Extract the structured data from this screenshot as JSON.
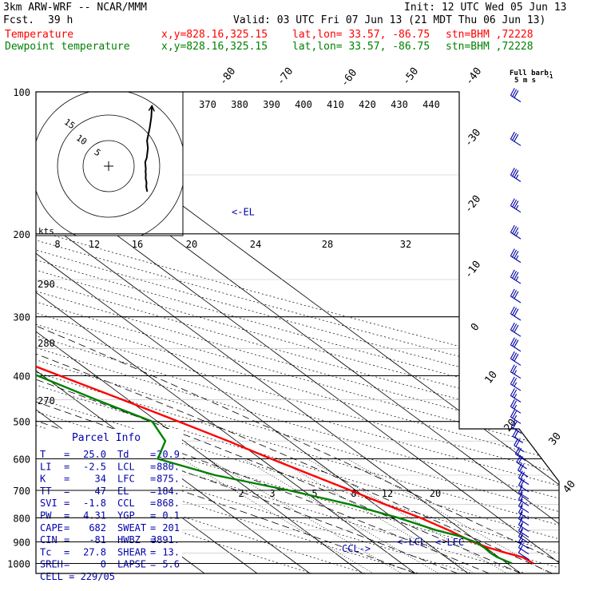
{
  "header": {
    "model": "3km ARW-WRF -- NCAR/MMM",
    "init": "Init: 12 UTC Wed 05 Jun 13",
    "fcst_label": "Fcst.",
    "fcst_value": "39 h",
    "valid": "Valid: 03 UTC Fri 07 Jun 13 (21 MDT Thu 06 Jun 13)",
    "temp_label": "Temperature",
    "dew_label": "Dewpoint temperature",
    "loc_xy": "x,y=828.16,325.15",
    "loc_latlon": "lat,lon= 33.57, -86.75",
    "loc_stn": "stn=BHM ,72228",
    "barb_note_1": "Full barb:",
    "barb_note_2": "5 m s",
    "barb_note_sup": "-1"
  },
  "colors": {
    "temperature": "#ff0000",
    "dewpoint": "#008000",
    "hodograph": "#000000",
    "isobar": "#000000",
    "parcel_info": "#0000aa",
    "wind": "#0000aa"
  },
  "chart_data": {
    "type": "line",
    "title": "",
    "xlabel": "",
    "ylabel": "",
    "pressure_levels": [
      100,
      200,
      300,
      400,
      500,
      600,
      700,
      800,
      900,
      1000
    ],
    "isotherm_labels": [
      -80,
      -70,
      -60,
      -50,
      -40,
      -30,
      -20,
      -10,
      0,
      10,
      20,
      30,
      40
    ],
    "theta_labels": [
      370,
      380,
      390,
      400,
      410,
      420,
      430,
      440
    ],
    "theta_left_labels": [
      290,
      280,
      270
    ],
    "mixing_ratio_labels": [
      2,
      3,
      5,
      8,
      12,
      20
    ],
    "hodograph": {
      "units": "kts",
      "ring_labels": [
        5,
        10,
        15
      ],
      "scale_labels": [
        8,
        12,
        16,
        20,
        24,
        28,
        32
      ],
      "path": [
        [
          17.2,
          -5.0
        ],
        [
          16.6,
          -4.0
        ],
        [
          16.8,
          -3.2
        ],
        [
          16.3,
          -2.4
        ],
        [
          16.4,
          -1.6
        ],
        [
          16.2,
          -1.0
        ],
        [
          16.4,
          -0.6
        ],
        [
          16.0,
          0.8
        ],
        [
          16.9,
          1.6
        ],
        [
          17.6,
          3.5
        ],
        [
          17.1,
          5.0
        ],
        [
          18.7,
          7.5
        ],
        [
          19.6,
          9.5
        ],
        [
          20.0,
          11.8
        ]
      ]
    },
    "series": [
      {
        "name": "Temperature",
        "points": [
          [
            1000,
            25.0
          ],
          [
            970,
            24.5
          ],
          [
            950,
            22.5
          ],
          [
            925,
            20.4
          ],
          [
            900,
            19.0
          ],
          [
            875,
            18.2
          ],
          [
            850,
            17.4
          ],
          [
            800,
            15.2
          ],
          [
            750,
            12.0
          ],
          [
            700,
            9.0
          ],
          [
            650,
            5.6
          ],
          [
            600,
            2.0
          ],
          [
            550,
            -1.6
          ],
          [
            500,
            -6.0
          ],
          [
            450,
            -11.0
          ],
          [
            400,
            -16.8
          ],
          [
            350,
            -23.2
          ],
          [
            300,
            -31.2
          ],
          [
            250,
            -41.0
          ],
          [
            200,
            -53.0
          ],
          [
            180,
            -58.0
          ],
          [
            170,
            -60.0
          ],
          [
            150,
            -61.0
          ],
          [
            130,
            -64.5
          ],
          [
            110,
            -68.0
          ],
          [
            100,
            -70.0
          ]
        ]
      },
      {
        "name": "Dewpoint temperature",
        "points": [
          [
            1000,
            20.9
          ],
          [
            970,
            19.7
          ],
          [
            950,
            19.5
          ],
          [
            925,
            19.7
          ],
          [
            900,
            19.4
          ],
          [
            875,
            17.9
          ],
          [
            850,
            15.0
          ],
          [
            800,
            11.0
          ],
          [
            750,
            5.3
          ],
          [
            700,
            -2.7
          ],
          [
            650,
            -12.8
          ],
          [
            600,
            -19.5
          ],
          [
            550,
            -13.5
          ],
          [
            500,
            -11.0
          ],
          [
            450,
            -16.0
          ],
          [
            400,
            -21.0
          ],
          [
            350,
            -30.5
          ],
          [
            300,
            -42.5
          ],
          [
            250,
            -49.0
          ],
          [
            200,
            -57.0
          ],
          [
            180,
            -68.0
          ],
          [
            160,
            -80.0
          ],
          [
            140,
            -82.0
          ],
          [
            120,
            -83.0
          ],
          [
            100,
            -84.0
          ]
        ]
      }
    ],
    "annotations": {
      "el": "<-EL",
      "ccl": "CCL->",
      "lcl": "<-LCL",
      "lfc": "<-LFC",
      "el_pressure": 184,
      "ccl_pressure": 868,
      "lcl_pressure": 880,
      "lfc_pressure": 875
    },
    "wind_profile": [
      [
        1000,
        210,
        11
      ],
      [
        925,
        220,
        13
      ],
      [
        850,
        225,
        15
      ],
      [
        700,
        235,
        18
      ],
      [
        600,
        240,
        20
      ],
      [
        500,
        240,
        23
      ],
      [
        400,
        240,
        27
      ],
      [
        300,
        240,
        31
      ],
      [
        250,
        240,
        33
      ],
      [
        200,
        240,
        35
      ],
      [
        150,
        240,
        33
      ],
      [
        100,
        240,
        30
      ]
    ],
    "parcel_info": {
      "title": "Parcel Info",
      "rows": [
        [
          "T",
          "25.0",
          "Td",
          "20.9"
        ],
        [
          "LI",
          "-2.5",
          "LCL",
          "880."
        ],
        [
          "K",
          "34",
          "LFC",
          "875."
        ],
        [
          "TT",
          "47",
          "EL",
          "184."
        ],
        [
          "SVI",
          "-1.8",
          "CCL",
          "868."
        ],
        [
          "PW",
          "4.31",
          "YGP",
          "0.1"
        ],
        [
          "CAPE",
          "682",
          "SWEAT",
          "201"
        ],
        [
          "CIN",
          "-81",
          "HWBZ",
          "3891."
        ],
        [
          "Tc",
          "27.8",
          "SHEAR",
          "13."
        ],
        [
          "SREH",
          "0",
          "LAPSE",
          "5.6"
        ]
      ],
      "cell": "CELL = 229/05"
    }
  }
}
